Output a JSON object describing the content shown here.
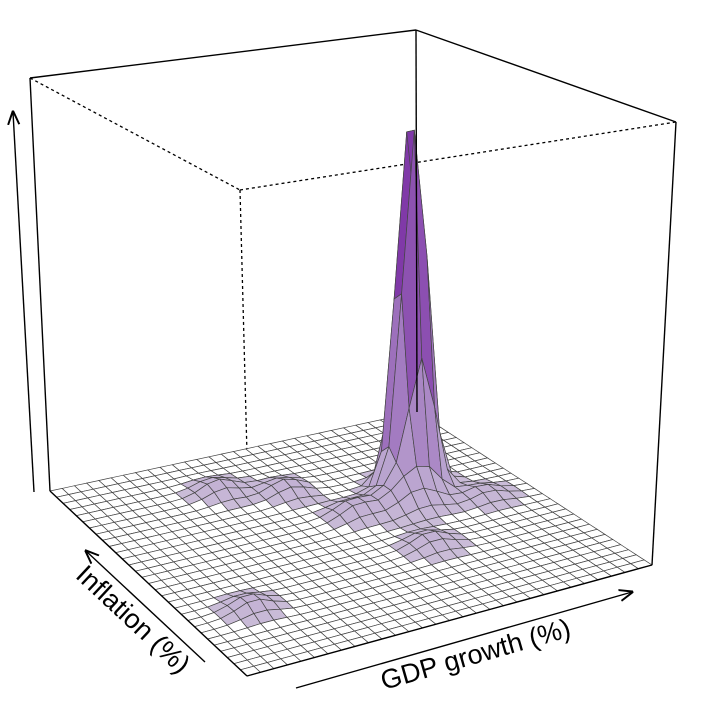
{
  "chart_data": {
    "type": "surface",
    "title": "",
    "xlabel": "GDP growth (%)",
    "ylabel": "Inflation (%)",
    "zlabel": "",
    "grid_resolution": 30,
    "colors": {
      "low": "#e6e6e6",
      "mid": "#b9a3cf",
      "high": "#7f38a8",
      "mesh": "#444444"
    },
    "peaks": [
      {
        "x": 0.77,
        "y": 0.65,
        "height": 1.0,
        "spread": 0.032
      },
      {
        "x": 0.72,
        "y": 0.58,
        "height": 0.08,
        "spread": 0.05
      },
      {
        "x": 0.58,
        "y": 0.58,
        "height": 0.035,
        "spread": 0.04
      },
      {
        "x": 0.5,
        "y": 0.76,
        "height": 0.03,
        "spread": 0.04
      },
      {
        "x": 0.36,
        "y": 0.83,
        "height": 0.03,
        "spread": 0.04
      },
      {
        "x": 0.65,
        "y": 0.36,
        "height": 0.03,
        "spread": 0.04
      },
      {
        "x": 0.88,
        "y": 0.52,
        "height": 0.025,
        "spread": 0.04
      },
      {
        "x": 0.15,
        "y": 0.28,
        "height": 0.03,
        "spread": 0.04
      }
    ]
  }
}
